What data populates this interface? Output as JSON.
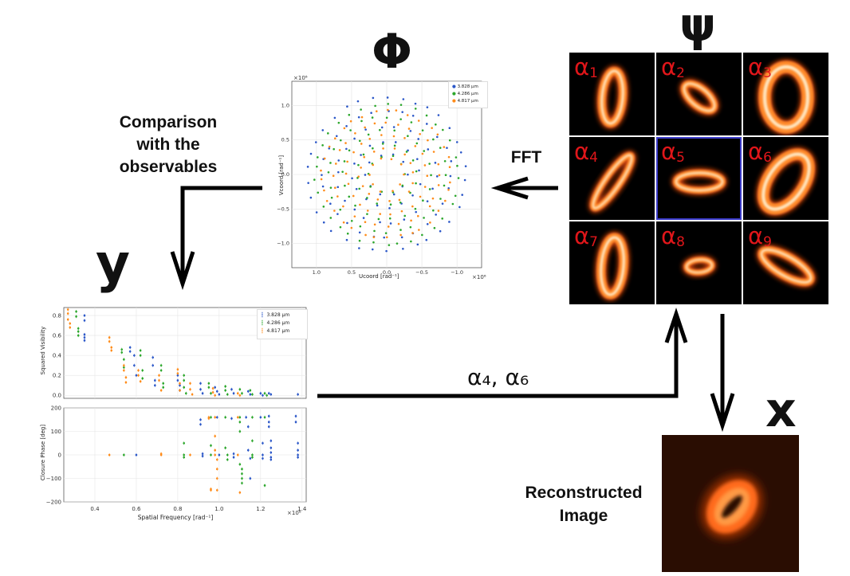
{
  "symbols": {
    "phi": "Φ",
    "psi": "ψ",
    "y": "y",
    "x": "x"
  },
  "labels": {
    "comparison": [
      "Comparison",
      "with the",
      "observables"
    ],
    "fft": "FFT",
    "selected_params": "α₄, α₆",
    "reconstructed": [
      "Reconstructed",
      "Image"
    ]
  },
  "tiles": [
    {
      "label": "α",
      "sub": "1",
      "rx": 13,
      "ry": 33,
      "angle": 5,
      "width": 10
    },
    {
      "label": "α",
      "sub": "2",
      "rx": 23,
      "ry": 11,
      "angle": 40,
      "width": 8
    },
    {
      "label": "α",
      "sub": "3",
      "rx": 27,
      "ry": 38,
      "angle": 0,
      "width": 15
    },
    {
      "label": "α",
      "sub": "4",
      "rx": 9,
      "ry": 40,
      "angle": 35,
      "width": 8
    },
    {
      "label": "α",
      "sub": "5",
      "rx": 29,
      "ry": 11,
      "angle": 0,
      "width": 8
    },
    {
      "label": "α",
      "sub": "6",
      "rx": 22,
      "ry": 39,
      "angle": 35,
      "width": 14
    },
    {
      "label": "α",
      "sub": "7",
      "rx": 14,
      "ry": 36,
      "angle": 5,
      "width": 11
    },
    {
      "label": "α",
      "sub": "8",
      "rx": 16,
      "ry": 8,
      "angle": -5,
      "width": 7
    },
    {
      "label": "α",
      "sub": "9",
      "rx": 35,
      "ry": 12,
      "angle": 30,
      "width": 9
    }
  ],
  "selected_tile": 5,
  "colors": {
    "blue": "#2b57c8",
    "green": "#2ca72c",
    "orange": "#ff8c1a",
    "tile_label": "#e0161a",
    "selection": "#3a3ac8",
    "recon_bg": "#2a0d02"
  },
  "uv_plot": {
    "xlabel": "Ucoord [rad⁻¹]",
    "ylabel": "Vcoord [rad⁻¹]",
    "exponent": "×10⁶",
    "xticks": [
      "1.0",
      "0.5",
      "0.0",
      "−0.5",
      "−1.0"
    ],
    "yticks": [
      "1.0",
      "0.5",
      "0.0",
      "−0.5",
      "−1.0"
    ],
    "legend": [
      "3.828 μm",
      "4.286 μm",
      "4.817 μm"
    ]
  },
  "chart_data": [
    {
      "type": "scatter",
      "title": "",
      "xlabel": "Spatial Frequency [rad⁻¹]",
      "ylabel": "Squared Visibility",
      "xlim": [
        0.25,
        1.42
      ],
      "ylim": [
        -0.03,
        0.88
      ],
      "yticks": [
        "0.8",
        "0.6",
        "0.4",
        "0.2",
        "0.0"
      ],
      "legend_placement": "top-right",
      "series": [
        {
          "name": "3.828 μm",
          "color": "#2b57c8",
          "points": [
            [
              0.35,
              0.8
            ],
            [
              0.35,
              0.75
            ],
            [
              0.35,
              0.61
            ],
            [
              0.35,
              0.58
            ],
            [
              0.35,
              0.55
            ],
            [
              0.57,
              0.48
            ],
            [
              0.57,
              0.44
            ],
            [
              0.59,
              0.4
            ],
            [
              0.59,
              0.3
            ],
            [
              0.6,
              0.2
            ],
            [
              0.68,
              0.38
            ],
            [
              0.68,
              0.3
            ],
            [
              0.69,
              0.15
            ],
            [
              0.69,
              0.1
            ],
            [
              0.8,
              0.2
            ],
            [
              0.8,
              0.15
            ],
            [
              0.81,
              0.1
            ],
            [
              0.81,
              0.05
            ],
            [
              0.91,
              0.12
            ],
            [
              0.91,
              0.06
            ],
            [
              0.92,
              0.02
            ],
            [
              0.98,
              0.08
            ],
            [
              0.99,
              0.04
            ],
            [
              1.0,
              0.01
            ],
            [
              1.06,
              0.06
            ],
            [
              1.07,
              0.02
            ],
            [
              1.14,
              0.04
            ],
            [
              1.15,
              0.01
            ],
            [
              1.2,
              0.02
            ],
            [
              1.21,
              0.0
            ],
            [
              1.24,
              0.02
            ],
            [
              1.25,
              0.01
            ],
            [
              1.38,
              0.01
            ]
          ]
        },
        {
          "name": "4.286 μm",
          "color": "#2ca72c",
          "points": [
            [
              0.31,
              0.84
            ],
            [
              0.31,
              0.79
            ],
            [
              0.32,
              0.67
            ],
            [
              0.32,
              0.64
            ],
            [
              0.32,
              0.6
            ],
            [
              0.53,
              0.46
            ],
            [
              0.53,
              0.43
            ],
            [
              0.54,
              0.36
            ],
            [
              0.54,
              0.28
            ],
            [
              0.62,
              0.45
            ],
            [
              0.62,
              0.4
            ],
            [
              0.63,
              0.25
            ],
            [
              0.63,
              0.17
            ],
            [
              0.72,
              0.3
            ],
            [
              0.72,
              0.25
            ],
            [
              0.73,
              0.12
            ],
            [
              0.73,
              0.08
            ],
            [
              0.83,
              0.2
            ],
            [
              0.83,
              0.15
            ],
            [
              0.83,
              0.08
            ],
            [
              0.84,
              0.02
            ],
            [
              0.95,
              0.12
            ],
            [
              0.95,
              0.08
            ],
            [
              0.96,
              0.02
            ],
            [
              1.03,
              0.09
            ],
            [
              1.03,
              0.05
            ],
            [
              1.04,
              0.01
            ],
            [
              1.1,
              0.06
            ],
            [
              1.11,
              0.02
            ],
            [
              1.15,
              0.05
            ],
            [
              1.16,
              0.01
            ],
            [
              1.22,
              0.02
            ],
            [
              1.23,
              0.0
            ]
          ]
        },
        {
          "name": "4.817 μm",
          "color": "#ff8c1a",
          "points": [
            [
              0.27,
              0.86
            ],
            [
              0.27,
              0.82
            ],
            [
              0.27,
              0.76
            ],
            [
              0.28,
              0.72
            ],
            [
              0.28,
              0.68
            ],
            [
              0.47,
              0.58
            ],
            [
              0.47,
              0.54
            ],
            [
              0.48,
              0.48
            ],
            [
              0.48,
              0.45
            ],
            [
              0.54,
              0.3
            ],
            [
              0.54,
              0.25
            ],
            [
              0.55,
              0.18
            ],
            [
              0.55,
              0.13
            ],
            [
              0.61,
              0.25
            ],
            [
              0.61,
              0.2
            ],
            [
              0.62,
              0.14
            ],
            [
              0.71,
              0.2
            ],
            [
              0.71,
              0.15
            ],
            [
              0.72,
              0.05
            ],
            [
              0.8,
              0.26
            ],
            [
              0.8,
              0.22
            ],
            [
              0.81,
              0.12
            ],
            [
              0.81,
              0.05
            ],
            [
              0.86,
              0.12
            ],
            [
              0.86,
              0.06
            ],
            [
              0.87,
              0.01
            ],
            [
              0.97,
              0.07
            ],
            [
              0.97,
              0.03
            ],
            [
              0.98,
              0.0
            ],
            [
              1.09,
              0.02
            ],
            [
              1.1,
              0.0
            ]
          ]
        }
      ]
    },
    {
      "type": "scatter",
      "title": "",
      "xlabel": "Spatial Frequency [rad⁻¹]",
      "ylabel": "Closure Phase [deg]",
      "x_exponent": "×10⁶",
      "xlim": [
        0.25,
        1.42
      ],
      "ylim": [
        -200,
        200
      ],
      "xticks": [
        "0.4",
        "0.6",
        "0.8",
        "1.0",
        "1.2",
        "1.4"
      ],
      "yticks": [
        "200",
        "100",
        "0",
        "−100",
        "−200"
      ],
      "series": [
        {
          "name": "3.828 μm",
          "color": "#2b57c8",
          "points": [
            [
              0.6,
              0
            ],
            [
              0.91,
              150
            ],
            [
              0.91,
              130
            ],
            [
              0.92,
              5
            ],
            [
              0.92,
              -5
            ],
            [
              0.99,
              160
            ],
            [
              1.0,
              0
            ],
            [
              1.06,
              155
            ],
            [
              1.07,
              5
            ],
            [
              1.07,
              -10
            ],
            [
              1.13,
              160
            ],
            [
              1.14,
              120
            ],
            [
              1.14,
              20
            ],
            [
              1.15,
              -15
            ],
            [
              1.15,
              -100
            ],
            [
              1.2,
              160
            ],
            [
              1.21,
              50
            ],
            [
              1.21,
              0
            ],
            [
              1.21,
              -15
            ],
            [
              1.24,
              165
            ],
            [
              1.24,
              140
            ],
            [
              1.24,
              120
            ],
            [
              1.25,
              60
            ],
            [
              1.25,
              30
            ],
            [
              1.25,
              10
            ],
            [
              1.25,
              -10
            ],
            [
              1.25,
              -20
            ],
            [
              1.37,
              165
            ],
            [
              1.37,
              140
            ],
            [
              1.38,
              50
            ],
            [
              1.38,
              20
            ],
            [
              1.38,
              0
            ],
            [
              1.38,
              -10
            ]
          ]
        },
        {
          "name": "4.286 μm",
          "color": "#2ca72c",
          "points": [
            [
              0.54,
              0
            ],
            [
              0.83,
              50
            ],
            [
              0.83,
              0
            ],
            [
              0.83,
              -10
            ],
            [
              0.96,
              160
            ],
            [
              0.96,
              40
            ],
            [
              0.96,
              0
            ],
            [
              1.03,
              160
            ],
            [
              1.03,
              30
            ],
            [
              1.04,
              0
            ],
            [
              1.04,
              -20
            ],
            [
              1.1,
              160
            ],
            [
              1.1,
              140
            ],
            [
              1.1,
              100
            ],
            [
              1.1,
              -40
            ],
            [
              1.11,
              -60
            ],
            [
              1.11,
              -80
            ],
            [
              1.11,
              -100
            ],
            [
              1.11,
              -120
            ],
            [
              1.16,
              160
            ],
            [
              1.16,
              60
            ],
            [
              1.16,
              0
            ],
            [
              1.16,
              -10
            ],
            [
              1.22,
              160
            ],
            [
              1.22,
              -130
            ]
          ]
        },
        {
          "name": "4.817 μm",
          "color": "#ff8c1a",
          "points": [
            [
              0.47,
              0
            ],
            [
              0.72,
              5
            ],
            [
              0.72,
              0
            ],
            [
              0.86,
              0
            ],
            [
              0.95,
              160
            ],
            [
              0.95,
              155
            ],
            [
              0.96,
              -145
            ],
            [
              0.96,
              -150
            ],
            [
              0.98,
              160
            ],
            [
              0.98,
              80
            ],
            [
              0.98,
              20
            ],
            [
              0.98,
              0
            ],
            [
              0.99,
              -20
            ],
            [
              0.99,
              -60
            ],
            [
              0.99,
              -100
            ],
            [
              0.99,
              -150
            ],
            [
              1.09,
              160
            ],
            [
              1.09,
              0
            ],
            [
              1.1,
              -160
            ]
          ]
        }
      ]
    }
  ]
}
